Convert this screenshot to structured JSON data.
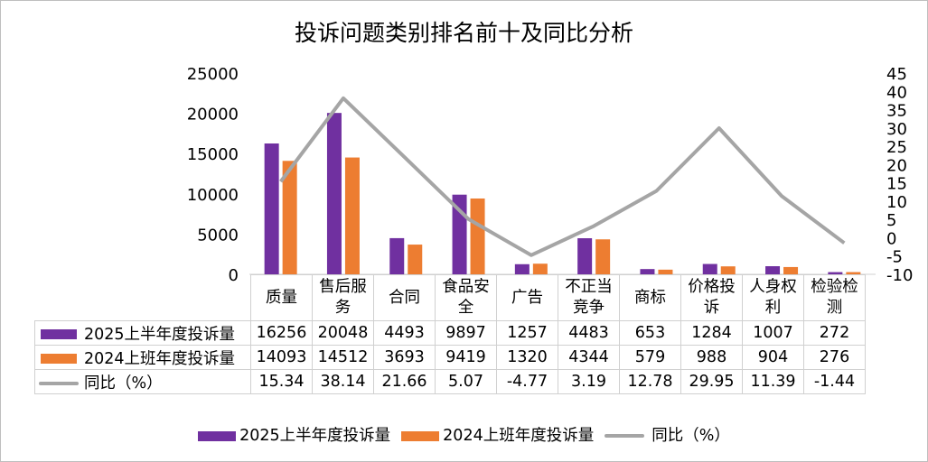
{
  "chart_data": {
    "type": "bar+line",
    "title": "投诉问题类别排名前十及同比分析",
    "categories": [
      "质量",
      "售后服务",
      "合同",
      "食品安全",
      "广告",
      "不正当竞争",
      "商标",
      "价格投诉",
      "人身权利",
      "检验检测"
    ],
    "series": [
      {
        "name": "2025上半年度投诉量",
        "type": "bar",
        "axis": "left",
        "color": "#7030A0",
        "values": [
          16256,
          20048,
          4493,
          9897,
          1257,
          4483,
          653,
          1284,
          1007,
          272
        ],
        "labels": [
          "16256",
          "20048",
          "4493",
          "9897",
          "1257",
          "4483",
          "653",
          "1284",
          "1007",
          "272"
        ]
      },
      {
        "name": "2024上班年度投诉量",
        "type": "bar",
        "axis": "left",
        "color": "#ED7D31",
        "values": [
          14093,
          14512,
          3693,
          9419,
          1320,
          4344,
          579,
          988,
          904,
          276
        ],
        "labels": [
          "14093",
          "14512",
          "3693",
          "9419",
          "1320",
          "4344",
          "579",
          "988",
          "904",
          "276"
        ]
      },
      {
        "name": "同比（%）",
        "type": "line",
        "axis": "right",
        "color": "#A5A5A5",
        "values": [
          15.34,
          38.14,
          21.66,
          5.07,
          -4.77,
          3.19,
          12.78,
          29.95,
          11.39,
          -1.44
        ],
        "labels": [
          "15.34",
          "38.14",
          "21.66",
          "5.07",
          "-4.77",
          "3.19",
          "12.78",
          "29.95",
          "11.39",
          "-1.44"
        ]
      }
    ],
    "left_axis": {
      "ylim": [
        0,
        25000
      ],
      "ticks": [
        "0",
        "5000",
        "10000",
        "15000",
        "20000",
        "25000"
      ]
    },
    "right_axis": {
      "ylim": [
        -10,
        45
      ],
      "ticks": [
        "-10",
        "-5",
        "0",
        "5",
        "10",
        "15",
        "20",
        "25",
        "30",
        "35",
        "40",
        "45"
      ]
    },
    "grid": false,
    "legend": "bottom",
    "data_table": true
  }
}
